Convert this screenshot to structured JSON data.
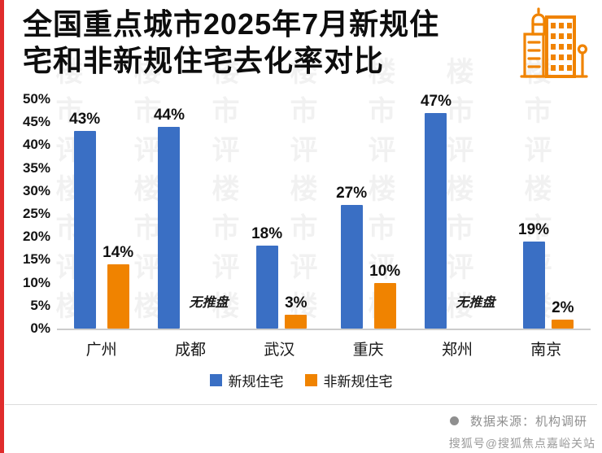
{
  "header": {
    "title_line1": "全国重点城市2025年7月新规住",
    "title_line2": "宅和非新规住宅去化率对比"
  },
  "chart_data": {
    "type": "bar",
    "title": "全国重点城市2025年7月新规住宅和非新规住宅去化率对比",
    "categories": [
      "广州",
      "成都",
      "武汉",
      "重庆",
      "郑州",
      "南京"
    ],
    "series": [
      {
        "name": "新规住宅",
        "color": "#3a6fc4",
        "values": [
          43,
          44,
          18,
          27,
          47,
          19
        ]
      },
      {
        "name": "非新规住宅",
        "color": "#f08300",
        "values": [
          14,
          null,
          3,
          10,
          null,
          2
        ]
      }
    ],
    "missing_value_label": "无推盘",
    "value_suffix": "%",
    "ylim": [
      0,
      50
    ],
    "yticks": [
      "50%",
      "45%",
      "40%",
      "35%",
      "30%",
      "25%",
      "20%",
      "15%",
      "10%",
      "5%",
      "0%"
    ],
    "grid": false,
    "legend_position": "bottom"
  },
  "footer": {
    "source": "数据来源：机构调研",
    "watermark": "搜狐号@搜狐焦点嘉峪关站"
  },
  "decor": {
    "watermark_text": "楼市评楼市评楼",
    "accent_red": "#e02c2c",
    "icon_orange": "#f08300"
  }
}
